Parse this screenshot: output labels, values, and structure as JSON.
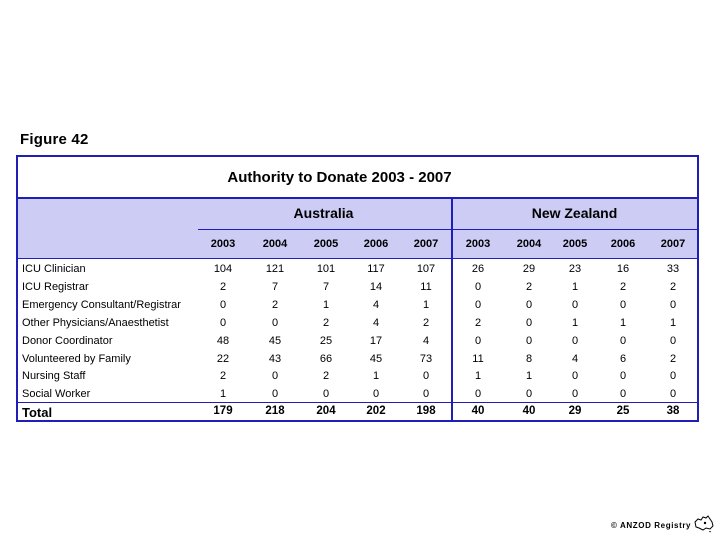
{
  "figure_label": "Figure 42",
  "table": {
    "title": "Authority to Donate  2003 - 2007",
    "groups": [
      "Australia",
      "New Zealand"
    ],
    "years": [
      "2003",
      "2004",
      "2005",
      "2006",
      "2007",
      "2003",
      "2004",
      "2005",
      "2006",
      "2007"
    ],
    "rows": [
      {
        "label": "ICU Clinician",
        "values": [
          "104",
          "121",
          "101",
          "117",
          "107",
          "26",
          "29",
          "23",
          "16",
          "33"
        ]
      },
      {
        "label": "ICU Registrar",
        "values": [
          "2",
          "7",
          "7",
          "14",
          "11",
          "0",
          "2",
          "1",
          "2",
          "2"
        ]
      },
      {
        "label": "Emergency Consultant/Registrar",
        "values": [
          "0",
          "2",
          "1",
          "4",
          "1",
          "0",
          "0",
          "0",
          "0",
          "0"
        ]
      },
      {
        "label": "Other Physicians/Anaesthetist",
        "values": [
          "0",
          "0",
          "2",
          "4",
          "2",
          "2",
          "0",
          "1",
          "1",
          "1"
        ]
      },
      {
        "label": "Donor Coordinator",
        "values": [
          "48",
          "45",
          "25",
          "17",
          "4",
          "0",
          "0",
          "0",
          "0",
          "0"
        ]
      },
      {
        "label": "Volunteered by Family",
        "values": [
          "22",
          "43",
          "66",
          "45",
          "73",
          "11",
          "8",
          "4",
          "6",
          "2"
        ]
      },
      {
        "label": "Nursing Staff",
        "values": [
          "2",
          "0",
          "2",
          "1",
          "0",
          "1",
          "1",
          "0",
          "0",
          "0"
        ]
      },
      {
        "label": "Social Worker",
        "values": [
          "1",
          "0",
          "0",
          "0",
          "0",
          "0",
          "0",
          "0",
          "0",
          "0"
        ]
      }
    ],
    "total": {
      "label": "Total",
      "values": [
        "179",
        "218",
        "204",
        "202",
        "198",
        "40",
        "40",
        "29",
        "25",
        "38"
      ]
    }
  },
  "footer": {
    "copyright": "© ANZOD Registry"
  },
  "colors": {
    "border": "#1f1fb8",
    "header_band": "#ccccf5"
  }
}
